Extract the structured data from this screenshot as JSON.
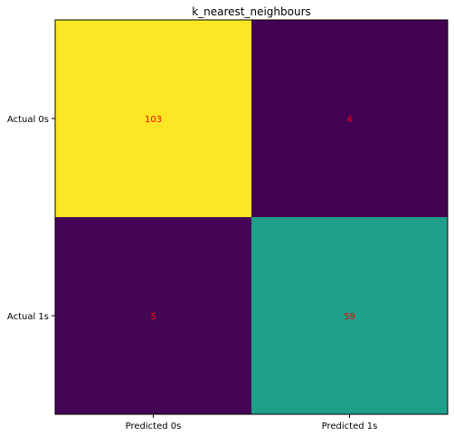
{
  "chart_data": {
    "type": "heatmap",
    "title": "k_nearest_neighbours",
    "x_tick_labels": [
      "Predicted 0s",
      "Predicted 1s"
    ],
    "y_tick_labels": [
      "Actual 0s",
      "Actual 1s"
    ],
    "matrix": [
      [
        103,
        4
      ],
      [
        5,
        59
      ]
    ],
    "colormap": "viridis",
    "value_range": [
      4,
      103
    ],
    "annotation_color": "#ff0000",
    "grid": false,
    "legend": "none"
  }
}
